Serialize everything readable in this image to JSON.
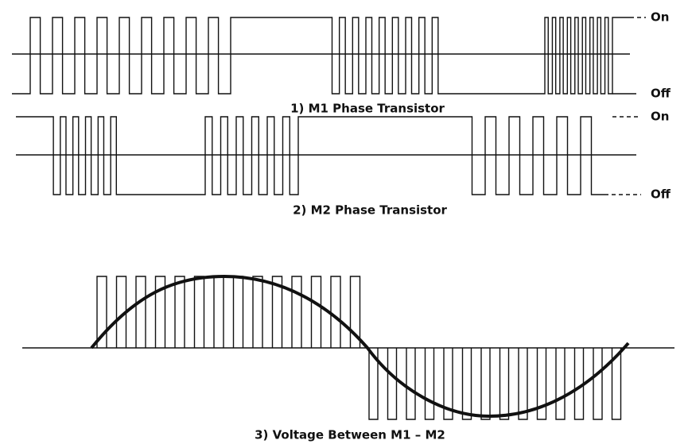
{
  "panels": [
    {
      "caption": "1) M1 Phase Transistor",
      "on_label": "On",
      "off_label": "Off"
    },
    {
      "caption": "2) M2 Phase Transistor",
      "on_label": "On",
      "off_label": "Off"
    },
    {
      "caption": "3) Voltage Between M1 – M2"
    }
  ]
}
